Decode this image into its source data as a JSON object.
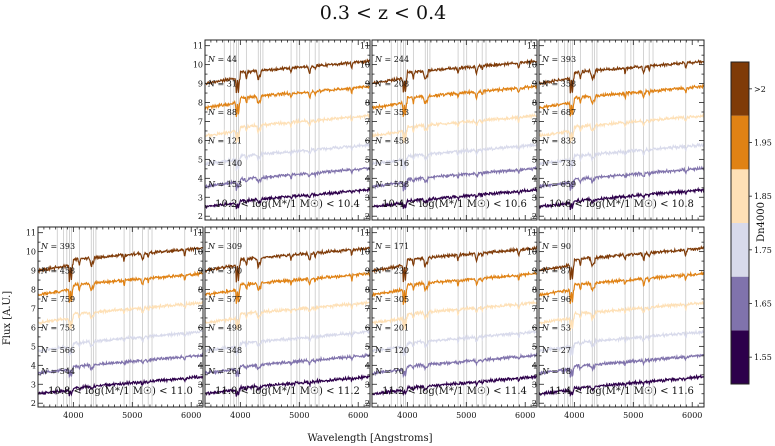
{
  "chart_data": {
    "type": "line",
    "title": "0.3 < z < 0.4",
    "xlabel": "Wavelength [Angstroms]",
    "ylabel": "Flux [A.U.]",
    "xlim": [
      3400,
      6200
    ],
    "ylim": [
      1.8,
      11.3
    ],
    "x_ticks": [
      "4000",
      "5000",
      "6000"
    ],
    "y_ticks": [
      "2",
      "3",
      "4",
      "5",
      "6",
      "7",
      "8",
      "9",
      "10",
      "11"
    ],
    "colorbar": {
      "label": "Dn4000",
      "bins": [
        "1.55",
        "1.65",
        "1.75",
        "1.85",
        "1.95",
        ">2"
      ],
      "colors": [
        "#2d004b",
        "#8073ac",
        "#d8daeb",
        "#fee0b6",
        "#e08214",
        "#7f3b08"
      ]
    },
    "series_levels": [
      3.0,
      4.1,
      5.3,
      6.8,
      8.3,
      9.6
    ],
    "spectral_lines": [
      3727,
      3835,
      3889,
      3934,
      3969,
      4102,
      4304,
      4340,
      4383,
      4861,
      4959,
      5007,
      5175,
      5270,
      5335,
      5890
    ],
    "panels": [
      {
        "label": "10.2 < log(M*/1 M☉) < 10.4",
        "counts": [
          "153",
          "140",
          "121",
          "88",
          "31",
          "44"
        ]
      },
      {
        "label": "10.4 < log(M*/1 M☉) < 10.6",
        "counts": [
          "538",
          "516",
          "458",
          "353",
          "208",
          "244"
        ]
      },
      {
        "label": "10.6 < log(M*/1 M☉) < 10.8",
        "counts": [
          "659",
          "733",
          "833",
          "687",
          "358",
          "393"
        ]
      },
      {
        "label": "10.8 < log(M*/1 M☉) < 11.0",
        "counts": [
          "544",
          "566",
          "753",
          "759",
          "458",
          "393"
        ]
      },
      {
        "label": "11.0 < log(M*/1 M☉) < 11.2",
        "counts": [
          "261",
          "348",
          "498",
          "577",
          "370",
          "309"
        ]
      },
      {
        "label": "11.2 < log(M*/1 M☉) < 11.4",
        "counts": [
          "70",
          "120",
          "201",
          "305",
          "232",
          "171"
        ]
      },
      {
        "label": "11.4 < log(M*/1 M☉) < 11.6",
        "counts": [
          "18",
          "27",
          "53",
          "96",
          "87",
          "90"
        ]
      }
    ]
  }
}
